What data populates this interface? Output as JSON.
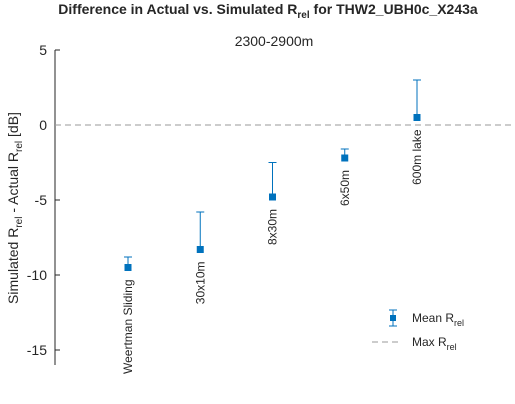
{
  "chart_data": {
    "type": "scatter",
    "title": "Difference in Actual vs. Simulated R",
    "title_sub": "rel",
    "title_suffix": " for THW2_UBH0c_X243a",
    "subtitle": "2300-2900m",
    "ylabel_prefix": "Simulated R",
    "ylabel_sub1": "rel",
    "ylabel_mid": " - Actual R",
    "ylabel_sub2": "rel",
    "ylabel_suffix": " [dB]",
    "ylim": [
      -16,
      5
    ],
    "yticks": [
      5,
      0,
      -5,
      -10,
      -15
    ],
    "grid": false,
    "legend_placement": "bottom-right",
    "marker_color": "#0072BD",
    "reference_line": {
      "y": 0,
      "color": "#999999",
      "style": "dashed"
    },
    "series": [
      {
        "name": "Mean R",
        "name_sub": "rel",
        "points": [
          {
            "label": "Weertman Sliding",
            "y": -9.5,
            "upper": -8.8
          },
          {
            "label": "30x10m",
            "y": -8.3,
            "upper": -5.8
          },
          {
            "label": "8x30m",
            "y": -4.8,
            "upper": -2.5
          },
          {
            "label": "6x50m",
            "y": -2.2,
            "upper": -1.6
          },
          {
            "label": "600m lake",
            "y": 0.5,
            "upper": 3.0
          }
        ]
      },
      {
        "name": "Max R",
        "name_sub": "rel"
      }
    ]
  }
}
